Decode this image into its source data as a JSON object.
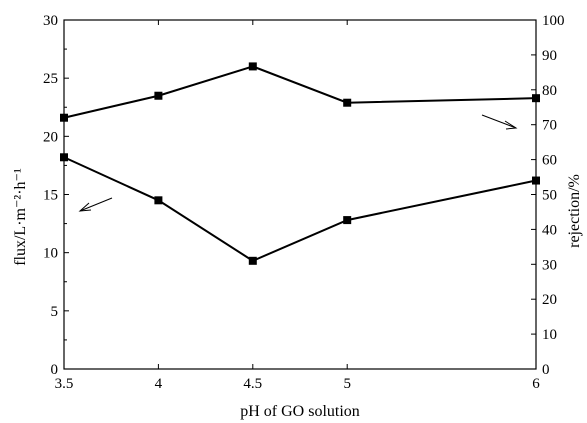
{
  "chart_data": {
    "type": "line",
    "xlabel": "pH of GO solution",
    "ylabel_left": "flux/L·m⁻²·h⁻¹",
    "ylabel_right": "rejection/%",
    "x": [
      3.5,
      4,
      4.5,
      5,
      6
    ],
    "x_ticks": [
      "3.5",
      "4",
      "4.5",
      "5",
      "6"
    ],
    "xlim": [
      3.5,
      6
    ],
    "ylim_left": [
      0,
      30
    ],
    "y_ticks_left": [
      "0",
      "5",
      "10",
      "15",
      "20",
      "25",
      "30"
    ],
    "ylim_right": [
      0,
      100
    ],
    "y_ticks_right": [
      "0",
      "10",
      "20",
      "30",
      "40",
      "50",
      "60",
      "70",
      "80",
      "90",
      "100"
    ],
    "grid": false,
    "series": [
      {
        "axis": "left",
        "values": [
          18.2,
          14.5,
          9.3,
          12.8,
          16.2
        ]
      },
      {
        "axis": "right",
        "values": [
          72.0,
          78.3,
          86.7,
          76.3,
          77.6
        ]
      }
    ],
    "annotations": [
      {
        "type": "arrow",
        "points_to": "left"
      },
      {
        "type": "arrow",
        "points_to": "right"
      }
    ]
  }
}
